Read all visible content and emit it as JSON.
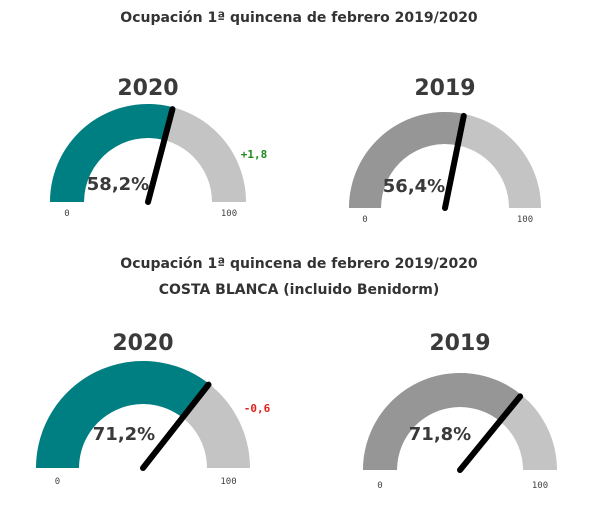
{
  "titles": {
    "section1": "Ocupación 1ª quincena de febrero 2019/2020",
    "section2_line1": "Ocupación 1ª quincena de febrero 2019/2020",
    "section2_line2": "COSTA BLANCA (incluido Benidorm)"
  },
  "colors": {
    "teal": "#007f83",
    "gray_dark": "#969696",
    "gray_light": "#c4c4c4",
    "needle": "#000000",
    "delta_positive": "#1f8a1f",
    "delta_negative": "#e0201c"
  },
  "chart_data": [
    {
      "type": "gauge",
      "year": "2020",
      "value": 58.2,
      "value_label": "58,2%",
      "min": 0,
      "max": 100,
      "min_label": "0",
      "max_label": "100",
      "delta_label": "+1,8",
      "delta_sign": "positive",
      "fill_color": "teal"
    },
    {
      "type": "gauge",
      "year": "2019",
      "value": 56.4,
      "value_label": "56,4%",
      "min": 0,
      "max": 100,
      "min_label": "0",
      "max_label": "100",
      "delta_label": "",
      "delta_sign": "",
      "fill_color": "gray_dark"
    },
    {
      "type": "gauge",
      "year": "2020",
      "value": 71.2,
      "value_label": "71,2%",
      "min": 0,
      "max": 100,
      "min_label": "0",
      "max_label": "100",
      "delta_label": "-0,6",
      "delta_sign": "negative",
      "fill_color": "teal"
    },
    {
      "type": "gauge",
      "year": "2019",
      "value": 71.8,
      "value_label": "71,8%",
      "min": 0,
      "max": 100,
      "min_label": "0",
      "max_label": "100",
      "delta_label": "",
      "delta_sign": "",
      "fill_color": "gray_dark"
    }
  ]
}
